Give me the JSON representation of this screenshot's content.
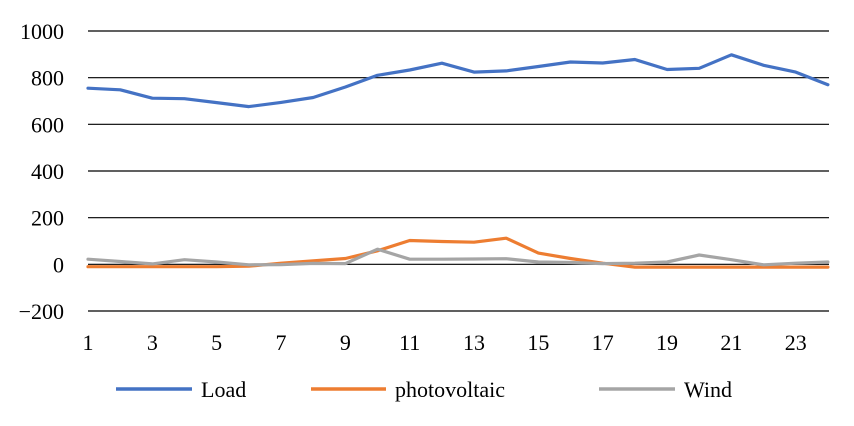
{
  "chart_data": {
    "type": "line",
    "title": "",
    "xlabel": "",
    "ylabel": "",
    "x": [
      1,
      2,
      3,
      4,
      5,
      6,
      7,
      8,
      9,
      10,
      11,
      12,
      13,
      14,
      15,
      16,
      17,
      18,
      19,
      20,
      21,
      22,
      23,
      24
    ],
    "x_tick_labels": [
      "1",
      "3",
      "5",
      "7",
      "9",
      "11",
      "13",
      "15",
      "17",
      "19",
      "21",
      "23"
    ],
    "y_tick_labels": [
      "1000",
      "800",
      "600",
      "400",
      "200",
      "0",
      "−200"
    ],
    "ylim": [
      -200,
      1000
    ],
    "grid": "horizontal",
    "legend_position": "bottom",
    "series": [
      {
        "name": "Load",
        "color": "#4472C4",
        "values": [
          755,
          748,
          712,
          710,
          693,
          676,
          694,
          715,
          760,
          810,
          833,
          862,
          824,
          829,
          848,
          867,
          863,
          878,
          835,
          840,
          898,
          853,
          824,
          770
        ]
      },
      {
        "name": "photovoltaic",
        "color": "#ED7D31",
        "values": [
          -10,
          -10,
          -10,
          -10,
          -10,
          -8,
          5,
          15,
          25,
          58,
          102,
          98,
          95,
          112,
          48,
          25,
          5,
          -12,
          -12,
          -12,
          -12,
          -12,
          -12,
          -12
        ]
      },
      {
        "name": "Wind",
        "color": "#A5A5A5",
        "values": [
          22,
          12,
          2,
          20,
          10,
          -2,
          -1,
          4,
          3,
          65,
          22,
          22,
          23,
          24,
          10,
          8,
          3,
          5,
          10,
          40,
          20,
          -2,
          5,
          10
        ]
      }
    ]
  }
}
